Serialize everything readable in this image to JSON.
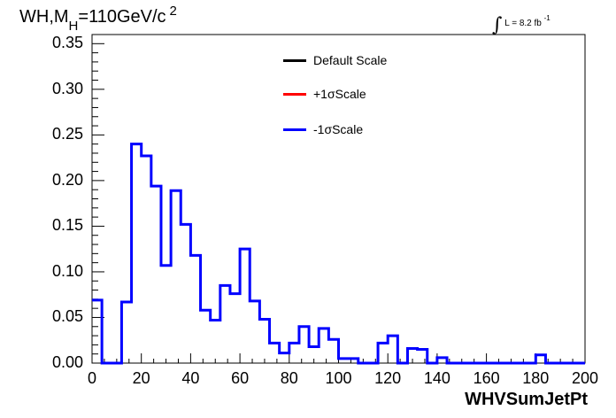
{
  "chart_data": {
    "type": "line",
    "title_parts": {
      "prefix": "WH,M",
      "sub": "H",
      "mid": "=110GeV/c",
      "sup": "2"
    },
    "lumi": {
      "integral": "∫",
      "text": "L = 8.2 fb",
      "sup": "-1"
    },
    "xlabel": "WHVSumJetPt",
    "ylabel": "",
    "xlim": [
      0,
      200
    ],
    "ylim": [
      0,
      0.36
    ],
    "x_ticks": [
      "0",
      "20",
      "40",
      "60",
      "80",
      "100",
      "120",
      "140",
      "160",
      "180",
      "200"
    ],
    "y_ticks": [
      "0.00",
      "0.05",
      "0.10",
      "0.15",
      "0.20",
      "0.25",
      "0.30",
      "0.35"
    ],
    "legend": [
      {
        "label": "Default Scale",
        "color": "#000000"
      },
      {
        "label": "+1σScale",
        "color": "#ff0000"
      },
      {
        "label": "-1σScale",
        "color": "#0000ff"
      }
    ],
    "legend_placement": "top-right",
    "bin_width": 4,
    "x": [
      2,
      6,
      10,
      14,
      18,
      22,
      26,
      30,
      34,
      38,
      42,
      46,
      50,
      54,
      58,
      62,
      66,
      70,
      74,
      78,
      82,
      86,
      90,
      94,
      98,
      102,
      106,
      110,
      114,
      118,
      122,
      126,
      130,
      134,
      138,
      142,
      146,
      150,
      154,
      158,
      162,
      166,
      170,
      174,
      178,
      182,
      186,
      190,
      194,
      198
    ],
    "series": [
      {
        "name": "-1σScale",
        "color": "#0000ff",
        "values": [
          0.069,
          0.0,
          0.0,
          0.067,
          0.24,
          0.227,
          0.194,
          0.107,
          0.189,
          0.152,
          0.118,
          0.058,
          0.047,
          0.085,
          0.076,
          0.125,
          0.068,
          0.048,
          0.022,
          0.011,
          0.022,
          0.04,
          0.018,
          0.038,
          0.026,
          0.005,
          0.005,
          0.0,
          0.0,
          0.022,
          0.03,
          0.0,
          0.016,
          0.015,
          0.0,
          0.006,
          0.0,
          0.0,
          0.0,
          0.0,
          0.0,
          0.0,
          0.0,
          0.0,
          0.0,
          0.009,
          0.0,
          0.0,
          0.0,
          0.0
        ]
      }
    ]
  }
}
